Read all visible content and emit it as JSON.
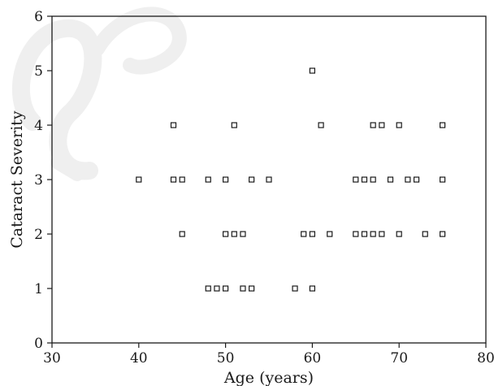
{
  "chart_data": {
    "type": "scatter",
    "xlabel": "Age (years)",
    "ylabel": "Cataract Severity",
    "xlim": [
      30,
      80
    ],
    "ylim": [
      0,
      6
    ],
    "xticks": [
      "30",
      "40",
      "50",
      "60",
      "70",
      "80"
    ],
    "yticks": [
      "0",
      "1",
      "2",
      "3",
      "4",
      "5",
      "6"
    ],
    "grid": false,
    "marker": "hollow-square",
    "marker_color": "#1a1a1a",
    "watermark_text": "fs",
    "points": [
      {
        "x": 40,
        "y": 3
      },
      {
        "x": 44,
        "y": 4
      },
      {
        "x": 44,
        "y": 3
      },
      {
        "x": 45,
        "y": 3
      },
      {
        "x": 45,
        "y": 2
      },
      {
        "x": 48,
        "y": 3
      },
      {
        "x": 48,
        "y": 1
      },
      {
        "x": 49,
        "y": 1
      },
      {
        "x": 50,
        "y": 3
      },
      {
        "x": 50,
        "y": 2
      },
      {
        "x": 50,
        "y": 1
      },
      {
        "x": 51,
        "y": 4
      },
      {
        "x": 51,
        "y": 2
      },
      {
        "x": 52,
        "y": 2
      },
      {
        "x": 52,
        "y": 1
      },
      {
        "x": 53,
        "y": 3
      },
      {
        "x": 53,
        "y": 1
      },
      {
        "x": 55,
        "y": 3
      },
      {
        "x": 58,
        "y": 1
      },
      {
        "x": 59,
        "y": 2
      },
      {
        "x": 60,
        "y": 5
      },
      {
        "x": 60,
        "y": 2
      },
      {
        "x": 60,
        "y": 1
      },
      {
        "x": 61,
        "y": 4
      },
      {
        "x": 62,
        "y": 2
      },
      {
        "x": 65,
        "y": 3
      },
      {
        "x": 65,
        "y": 2
      },
      {
        "x": 66,
        "y": 3
      },
      {
        "x": 66,
        "y": 2
      },
      {
        "x": 67,
        "y": 4
      },
      {
        "x": 67,
        "y": 3
      },
      {
        "x": 67,
        "y": 2
      },
      {
        "x": 68,
        "y": 4
      },
      {
        "x": 68,
        "y": 2
      },
      {
        "x": 69,
        "y": 3
      },
      {
        "x": 70,
        "y": 4
      },
      {
        "x": 70,
        "y": 2
      },
      {
        "x": 71,
        "y": 3
      },
      {
        "x": 72,
        "y": 3
      },
      {
        "x": 73,
        "y": 2
      },
      {
        "x": 75,
        "y": 4
      },
      {
        "x": 75,
        "y": 3
      },
      {
        "x": 75,
        "y": 2
      }
    ]
  }
}
